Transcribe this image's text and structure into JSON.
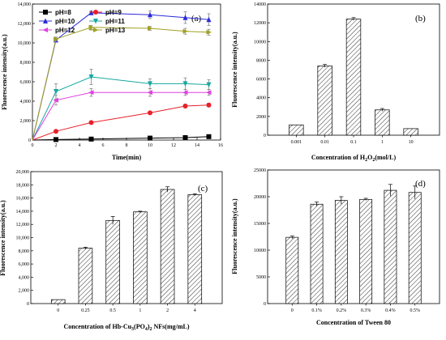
{
  "chart_data": [
    {
      "panel": "(a)",
      "type": "line",
      "xlabel": "Time(min)",
      "ylabel": "Fluorescence intensity(a.u.)",
      "xlim": [
        0,
        16
      ],
      "ylim": [
        0,
        14000
      ],
      "xticks": [
        0,
        2,
        4,
        6,
        8,
        10,
        12,
        14,
        16
      ],
      "yticks": [
        0,
        2000,
        4000,
        6000,
        8000,
        10000,
        12000,
        14000
      ],
      "ytick_labels": [
        "0",
        "2,000",
        "4,000",
        "6,000",
        "8,000",
        "10,000",
        "12,000",
        "14,000"
      ],
      "x": [
        2,
        5,
        10,
        13,
        15
      ],
      "series": [
        {
          "name": "pH=8",
          "values": [
            50,
            100,
            200,
            250,
            350
          ],
          "color": "#000000",
          "marker": "square"
        },
        {
          "name": "pH=9",
          "values": [
            900,
            1800,
            2800,
            3500,
            3600
          ],
          "color": "#e8202a",
          "marker": "circle",
          "errors": [
            0,
            0,
            100,
            200,
            200
          ]
        },
        {
          "name": "pH=10",
          "values": [
            10300,
            13100,
            12900,
            12600,
            12400
          ],
          "color": "#2a2ad8",
          "marker": "triangle-up",
          "errors": [
            200,
            200,
            400,
            600,
            600
          ]
        },
        {
          "name": "pH=11",
          "values": [
            5000,
            6500,
            5800,
            5800,
            5700
          ],
          "color": "#18a8a0",
          "marker": "triangle-down",
          "errors": [
            800,
            800,
            500,
            600,
            500
          ]
        },
        {
          "name": "pH=12",
          "values": [
            4100,
            4900,
            4900,
            4900,
            4900
          ],
          "color": "#e040e0",
          "marker": "triangle-left",
          "errors": [
            500,
            400,
            400,
            300,
            300
          ]
        },
        {
          "name": "pH=13",
          "values": [
            10400,
            11600,
            11500,
            11200,
            11100
          ],
          "color": "#a0a020",
          "marker": "triangle-right",
          "errors": [
            200,
            200,
            200,
            300,
            300
          ]
        }
      ],
      "legend": "top-left",
      "grid": false
    },
    {
      "panel": "(b)",
      "type": "bar",
      "xlabel": "Concentration of  H2O2(mol/L)",
      "ylabel": "Fluorescence intensity(a.u.)",
      "categories": [
        "0.001",
        "0.01",
        "0.1",
        "1",
        "10"
      ],
      "values": [
        1100,
        7400,
        12400,
        2700,
        700
      ],
      "errors": [
        0,
        150,
        150,
        150,
        0
      ],
      "ylim": [
        0,
        14000
      ],
      "yticks": [
        0,
        2000,
        4000,
        6000,
        8000,
        10000,
        12000,
        14000
      ],
      "ytick_labels": [
        "0",
        "2000",
        "4000",
        "6000",
        "8000",
        "10000",
        "12000",
        "14000"
      ],
      "grid": false
    },
    {
      "panel": "(c)",
      "type": "bar",
      "xlabel": "Concentration of  Hb-Cu3(PO4)2 NFs(mg/mL)",
      "ylabel": "Fluorescence intensity(a.u.)",
      "categories": [
        "0",
        "0.25",
        "0.5",
        "1",
        "2",
        "4"
      ],
      "values": [
        600,
        8400,
        12600,
        13900,
        17300,
        16500
      ],
      "errors": [
        0,
        150,
        600,
        100,
        400,
        150
      ],
      "ylim": [
        0,
        20000
      ],
      "yticks": [
        0,
        2000,
        4000,
        6000,
        8000,
        10000,
        12000,
        14000,
        16000,
        18000,
        20000
      ],
      "ytick_labels": [
        "0",
        "2,000",
        "4,000",
        "6,000",
        "8,000",
        "10,000",
        "12,000",
        "14,000",
        "16,000",
        "18,000",
        "20,000"
      ],
      "grid": false
    },
    {
      "panel": "(d)",
      "type": "bar",
      "xlabel": "Concentration of Tween 80",
      "ylabel": "Fluorescence intensity(a.u.)",
      "categories": [
        "0",
        "0.1%",
        "0.2%",
        "0.3%",
        "0.4%",
        "0.5%"
      ],
      "values": [
        12400,
        18600,
        19300,
        19500,
        21200,
        20800
      ],
      "errors": [
        250,
        400,
        700,
        200,
        1100,
        1200
      ],
      "ylim": [
        0,
        25000
      ],
      "yticks": [
        0,
        5000,
        10000,
        15000,
        20000,
        25000
      ],
      "ytick_labels": [
        "0",
        "5000",
        "10000",
        "15000",
        "20000",
        "25000"
      ],
      "grid": false
    }
  ]
}
